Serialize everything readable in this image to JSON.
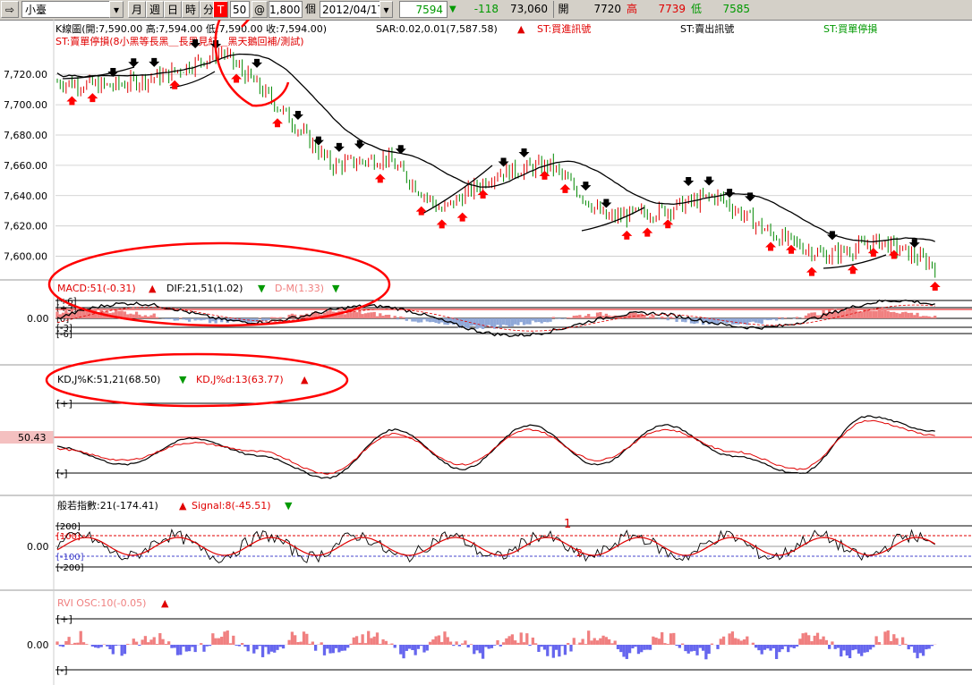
{
  "toolbar": {
    "product": "小臺",
    "period_buttons": [
      "月",
      "週",
      "日",
      "時",
      "分",
      "T"
    ],
    "interval": "50",
    "at": "@",
    "count": "1,800",
    "count_unit": "個",
    "date": "2012/04/17",
    "last": "7594",
    "change_arrow": "▼",
    "change": "-118",
    "volume": "73,060",
    "open_label": "開",
    "open": "7720",
    "high_label": "高",
    "high": "7739",
    "low_label": "低",
    "low": "7585"
  },
  "price_panel": {
    "header": "K線圖(開:7,590.00 高:7,594.00 低:7,590.00 收:7,594.00)",
    "sar": "SAR:0.02,0.01(7,587.58)",
    "sar_arrow": "▲",
    "st_buy_signal": "ST:買進訊號",
    "st_sell_signal": "ST:賣出訊號",
    "st_buy_stop": "ST:買單停損",
    "st_sell_stop": "ST:賣單停損(8小黑等長黑＿長黑見紅＿黑天鵝回補/測試)",
    "y_labels": [
      "7,720.00",
      "7,700.00",
      "7,680.00",
      "7,660.00",
      "7,640.00",
      "7,620.00",
      "7,600.00"
    ]
  },
  "macd_panel": {
    "label1": "MACD:51(-0.31)",
    "arrow1": "▲",
    "label2": "DIF:21,51(1.02)",
    "arrow2": "▼",
    "label3": "D-M(1.33)",
    "arrow3": "▼",
    "zero_label": "0.00",
    "band_labels": [
      "+6",
      "+3",
      "0",
      "-3",
      "-6"
    ]
  },
  "kd_panel": {
    "label1": "KD,J%K:51,21(68.50)",
    "arrow1": "▼",
    "label2": "KD,J%d:13(63.77)",
    "arrow2": "▲",
    "level_label": "50.43",
    "band_plus": "+",
    "band_minus": "-"
  },
  "cci_panel": {
    "label1": "般若指數:21(-174.41)",
    "arrow1": "▲",
    "label2": "Signal:8(-45.51)",
    "arrow2": "▼",
    "zero_label": "0.00",
    "band_labels": [
      "200",
      "100",
      "-100",
      "-200"
    ],
    "annotation1": "1",
    "annotation2": "2"
  },
  "rvi_panel": {
    "label": "RVI OSC:10(-0.05)",
    "arrow": "▲",
    "zero_label": "0.00",
    "band_plus": "+",
    "band_minus": "-"
  },
  "colors": {
    "up_bar": "#e00000",
    "down_bar": "#008800",
    "signal_red": "#ff0000",
    "signal_black": "#000000",
    "macd_hist_pos": "#f08080",
    "macd_hist_neg": "#8fa8d8",
    "rvi_pos": "#f08080",
    "rvi_neg": "#6666ee",
    "annotation": "#ff0000",
    "label_red": "#e00000",
    "label_green": "#009900"
  },
  "chart_data": [
    {
      "type": "line",
      "panel": "price_candles",
      "ylim": [
        7585,
        7739
      ],
      "x": [
        0,
        60,
        120,
        180,
        240,
        300,
        360,
        420,
        480,
        540,
        600,
        660,
        720,
        780,
        840,
        900,
        960
      ],
      "values": [
        7715,
        7712,
        7720,
        7735,
        7700,
        7660,
        7665,
        7630,
        7655,
        7660,
        7625,
        7630,
        7640,
        7615,
        7600,
        7610,
        7594
      ]
    },
    {
      "type": "line",
      "panel": "kd",
      "series": [
        {
          "name": "KD,J%K:51,21",
          "values": [
            50,
            30,
            60,
            40,
            15,
            70,
            25,
            75,
            30,
            75,
            40,
            20,
            85,
            68.5
          ]
        },
        {
          "name": "KD,J%d:13",
          "values": [
            48,
            35,
            55,
            45,
            20,
            65,
            30,
            70,
            35,
            70,
            45,
            25,
            80,
            63.77
          ]
        }
      ]
    }
  ]
}
